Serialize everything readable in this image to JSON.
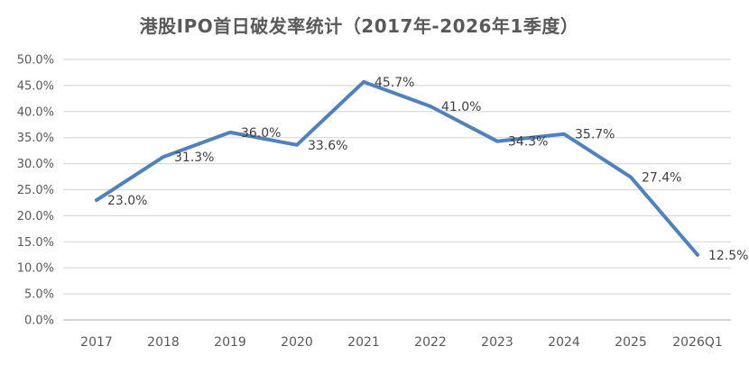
{
  "chart_data": {
    "type": "line",
    "title": "港股IPO首日破发率统计（2017年-2026年1季度）",
    "categories": [
      "2017",
      "2018",
      "2019",
      "2020",
      "2021",
      "2022",
      "2023",
      "2024",
      "2025",
      "2026Q1"
    ],
    "values": [
      23.0,
      31.3,
      36.0,
      33.6,
      45.7,
      41.0,
      34.3,
      35.7,
      27.4,
      12.5
    ],
    "data_labels": [
      "23.0%",
      "31.3%",
      "36.0%",
      "33.6%",
      "45.7%",
      "41.0%",
      "34.3%",
      "35.7%",
      "27.4%",
      "12.5%"
    ],
    "xlabel": "",
    "ylabel": "",
    "ylim": [
      0,
      50
    ],
    "ytick_step": 5,
    "ytick_labels": [
      "0.0%",
      "5.0%",
      "10.0%",
      "15.0%",
      "20.0%",
      "25.0%",
      "30.0%",
      "35.0%",
      "40.0%",
      "45.0%",
      "50.0%"
    ],
    "grid": "horizontal",
    "legend": "none",
    "colors": {
      "line": "#4F81BD",
      "gridline": "#D9D9D9",
      "axis_line": "#C6C6C6",
      "title": "#595959",
      "tick_label": "#595959",
      "data_label": "#404040",
      "background": "#FFFFFF"
    }
  }
}
